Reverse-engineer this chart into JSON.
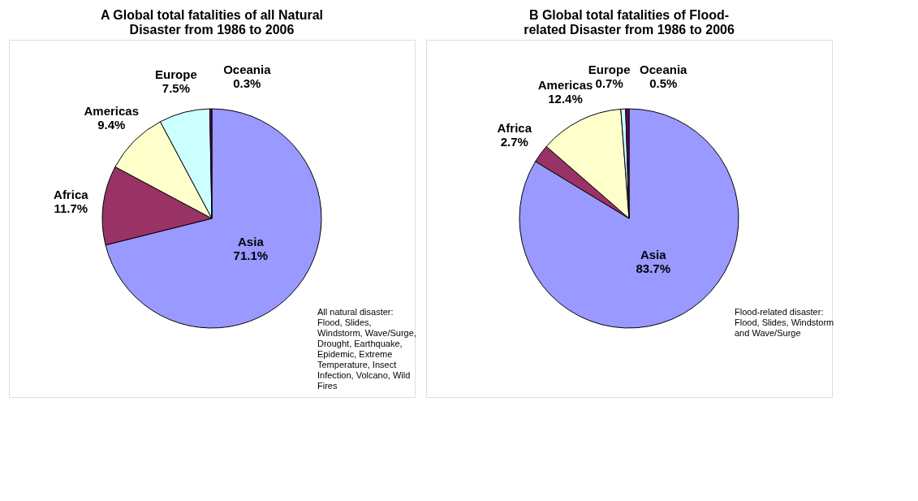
{
  "chart_data": [
    {
      "type": "pie",
      "title": "A  Global total fatalities of all Natural Disaster from 1986 to 2006",
      "categories": [
        "Asia",
        "Africa",
        "Americas",
        "Europe",
        "Oceania"
      ],
      "values": [
        71.1,
        11.7,
        9.4,
        7.5,
        0.3
      ],
      "colors": [
        "#9999ff",
        "#993366",
        "#ffffcc",
        "#ccffff",
        "#660066"
      ],
      "value_labels": [
        "71.1%",
        "11.7%",
        "9.4%",
        "7.5%",
        "0.3%"
      ],
      "annotations": [
        "All natural disaster: Flood, Slides, Windstorm, Wave/Surge, Drought, Earthquake, Epidemic, Extreme Temperature, Insect Infection, Volcano, Wild Fires"
      ]
    },
    {
      "type": "pie",
      "title": "B  Global total fatalities of Flood-related Disaster from 1986 to 2006",
      "categories": [
        "Asia",
        "Africa",
        "Americas",
        "Europe",
        "Oceania"
      ],
      "values": [
        83.7,
        2.7,
        12.4,
        0.7,
        0.5
      ],
      "colors": [
        "#9999ff",
        "#993366",
        "#ffffcc",
        "#ccffff",
        "#660066"
      ],
      "value_labels": [
        "83.7%",
        "2.7%",
        "12.4%",
        "0.7%",
        "0.5%"
      ],
      "annotations": [
        "Flood-related disaster: Flood, Slides, Windstorm and Wave/Surge"
      ]
    }
  ]
}
